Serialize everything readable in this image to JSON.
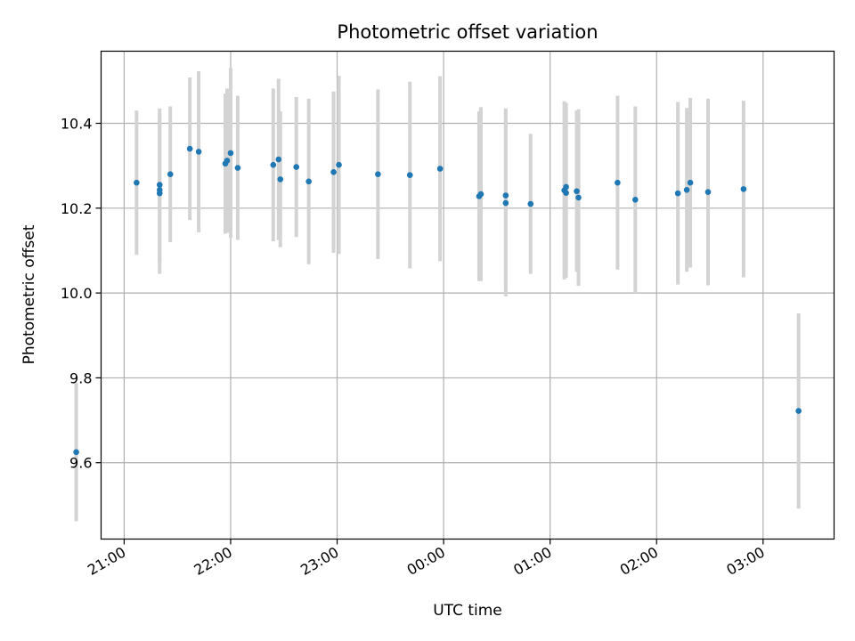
{
  "chart_data": {
    "type": "scatter",
    "title": "Photometric offset variation",
    "xlabel": "UTC time",
    "ylabel": "Photometric offset",
    "xlim": [
      "20:47",
      "03:40"
    ],
    "ylim": [
      9.42,
      10.57
    ],
    "grid": true,
    "x_ticks": [
      "21:00",
      "22:00",
      "23:00",
      "00:00",
      "01:00",
      "02:00",
      "03:00"
    ],
    "y_ticks": [
      "9.6",
      "9.8",
      "10.0",
      "10.2",
      "10.4"
    ],
    "y_tick_values": [
      9.6,
      9.8,
      10.0,
      10.2,
      10.4
    ],
    "colors": {
      "marker": "#1f77b4",
      "errorbar": "#d3d3d3",
      "grid": "#b0b0b0"
    },
    "points": [
      {
        "t": "20:33",
        "y": 9.625,
        "err": 0.163
      },
      {
        "t": "21:07",
        "y": 10.26,
        "err": 0.17
      },
      {
        "t": "21:20",
        "y": 10.235,
        "err": 0.19
      },
      {
        "t": "21:20",
        "y": 10.243,
        "err": 0.17
      },
      {
        "t": "21:20",
        "y": 10.255,
        "err": 0.18
      },
      {
        "t": "21:26",
        "y": 10.28,
        "err": 0.16
      },
      {
        "t": "21:37",
        "y": 10.34,
        "err": 0.168
      },
      {
        "t": "21:42",
        "y": 10.333,
        "err": 0.19
      },
      {
        "t": "21:57",
        "y": 10.305,
        "err": 0.165
      },
      {
        "t": "21:58",
        "y": 10.312,
        "err": 0.17
      },
      {
        "t": "22:00",
        "y": 10.33,
        "err": 0.2
      },
      {
        "t": "22:04",
        "y": 10.295,
        "err": 0.17
      },
      {
        "t": "22:24",
        "y": 10.302,
        "err": 0.18
      },
      {
        "t": "22:27",
        "y": 10.315,
        "err": 0.19
      },
      {
        "t": "22:28",
        "y": 10.268,
        "err": 0.16
      },
      {
        "t": "22:37",
        "y": 10.297,
        "err": 0.165
      },
      {
        "t": "22:44",
        "y": 10.263,
        "err": 0.195
      },
      {
        "t": "22:58",
        "y": 10.285,
        "err": 0.19
      },
      {
        "t": "23:01",
        "y": 10.302,
        "err": 0.21
      },
      {
        "t": "23:23",
        "y": 10.28,
        "err": 0.2
      },
      {
        "t": "23:41",
        "y": 10.278,
        "err": 0.22
      },
      {
        "t": "23:58",
        "y": 10.293,
        "err": 0.218
      },
      {
        "t": "00:20",
        "y": 10.228,
        "err": 0.2
      },
      {
        "t": "00:21",
        "y": 10.233,
        "err": 0.205
      },
      {
        "t": "00:35",
        "y": 10.212,
        "err": 0.22
      },
      {
        "t": "00:35",
        "y": 10.23,
        "err": 0.205
      },
      {
        "t": "00:49",
        "y": 10.21,
        "err": 0.165
      },
      {
        "t": "01:08",
        "y": 10.242,
        "err": 0.21
      },
      {
        "t": "01:09",
        "y": 10.236,
        "err": 0.2
      },
      {
        "t": "01:09",
        "y": 10.25,
        "err": 0.198
      },
      {
        "t": "01:15",
        "y": 10.24,
        "err": 0.19
      },
      {
        "t": "01:16",
        "y": 10.225,
        "err": 0.208
      },
      {
        "t": "01:38",
        "y": 10.26,
        "err": 0.205
      },
      {
        "t": "01:48",
        "y": 10.22,
        "err": 0.22
      },
      {
        "t": "02:12",
        "y": 10.235,
        "err": 0.215
      },
      {
        "t": "02:17",
        "y": 10.243,
        "err": 0.193
      },
      {
        "t": "02:19",
        "y": 10.26,
        "err": 0.2
      },
      {
        "t": "02:29",
        "y": 10.238,
        "err": 0.22
      },
      {
        "t": "02:49",
        "y": 10.245,
        "err": 0.208
      },
      {
        "t": "03:20",
        "y": 9.722,
        "err": 0.23
      }
    ]
  }
}
